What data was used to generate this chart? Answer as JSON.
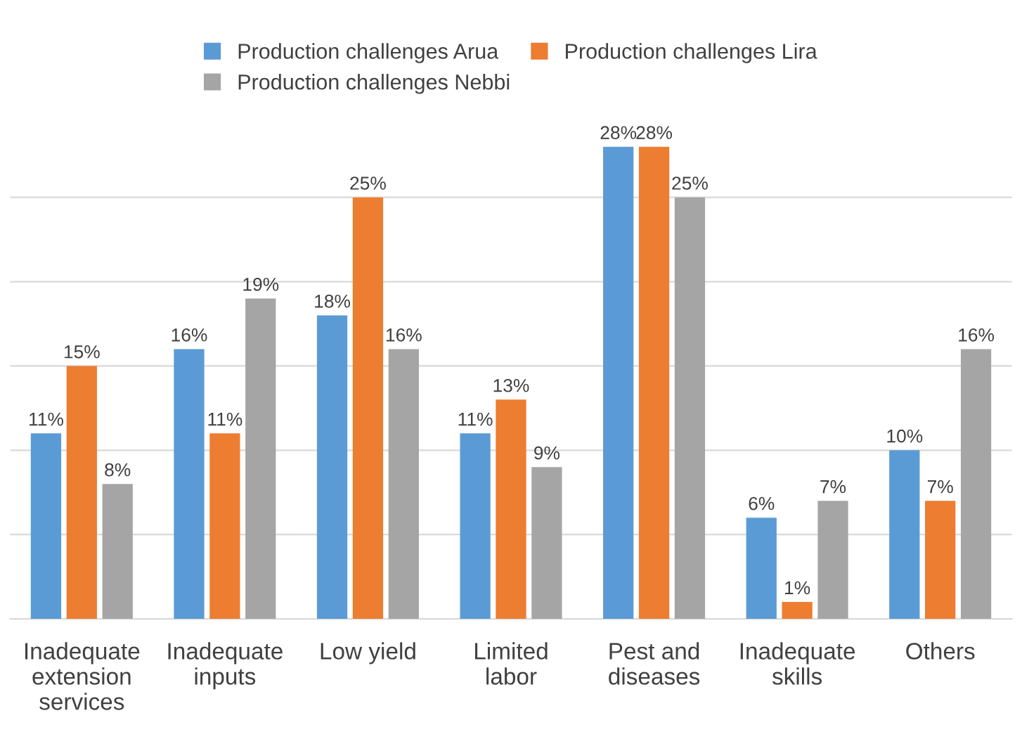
{
  "chart_data": {
    "type": "bar",
    "categories": [
      "Inadequate extension services",
      "Inadequate inputs",
      "Low yield",
      "Limited labor",
      "Pest and diseases",
      "Inadequate skills",
      "Others"
    ],
    "series": [
      {
        "name": "Production challenges Arua",
        "color": "#5b9bd5",
        "values": [
          11,
          16,
          18,
          11,
          28,
          6,
          10
        ],
        "value_labels": [
          "11%",
          "16%",
          "18%",
          "11%",
          "28%",
          "6%",
          "10%"
        ]
      },
      {
        "name": "Production challenges Lira",
        "color": "#ed7d31",
        "values": [
          15,
          11,
          25,
          13,
          28,
          1,
          7
        ],
        "value_labels": [
          "15%",
          "11%",
          "25%",
          "13%",
          "28%",
          "1%",
          "7%"
        ]
      },
      {
        "name": "Production challenges Nebbi",
        "color": "#a5a5a5",
        "values": [
          8,
          19,
          16,
          9,
          25,
          7,
          16
        ],
        "value_labels": [
          "8%",
          "19%",
          "16%",
          "9%",
          "25%",
          "7%",
          "16%"
        ]
      }
    ],
    "tick_labels": "x",
    "grid": "y",
    "legend": "top"
  }
}
